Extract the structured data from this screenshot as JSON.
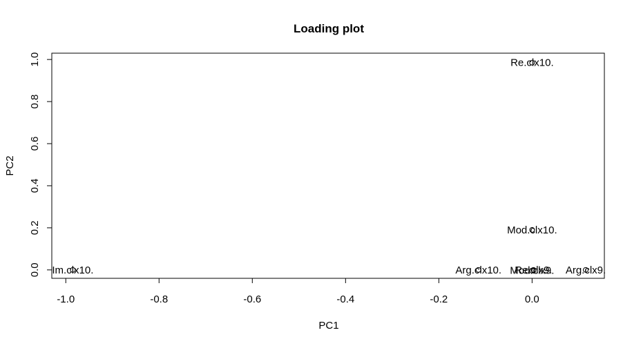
{
  "chart_data": {
    "type": "scatter",
    "title": "Loading plot",
    "xlabel": "PC1",
    "ylabel": "PC2",
    "xlim": [
      -1.03,
      0.155
    ],
    "ylim": [
      -0.04,
      1.03
    ],
    "x_ticks": [
      -1.0,
      -0.8,
      -0.6,
      -0.4,
      -0.2,
      0.0
    ],
    "x_tick_labels": [
      "-1.0",
      "-0.8",
      "-0.6",
      "-0.4",
      "-0.2",
      "0.0"
    ],
    "y_ticks": [
      0.0,
      0.2,
      0.4,
      0.6,
      0.8,
      1.0
    ],
    "y_tick_labels": [
      "0.0",
      "0.2",
      "0.4",
      "0.6",
      "0.8",
      "1.0"
    ],
    "grid": false,
    "legend": "none",
    "points": [
      {
        "label": "Re.clx10.",
        "x": 0.0,
        "y": 0.985
      },
      {
        "label": "Mod.clx10.",
        "x": 0.0,
        "y": 0.19
      },
      {
        "label": "Im.clx10.",
        "x": -0.985,
        "y": 0.0
      },
      {
        "label": "Arg.clx10.",
        "x": -0.115,
        "y": 0.0
      },
      {
        "label": "Re.clx9.",
        "x": 0.003,
        "y": 0.0
      },
      {
        "label": "Mod.clx9.",
        "x": 0.0,
        "y": -0.003
      },
      {
        "label": "Arg.clx9.",
        "x": 0.115,
        "y": 0.0
      }
    ]
  }
}
